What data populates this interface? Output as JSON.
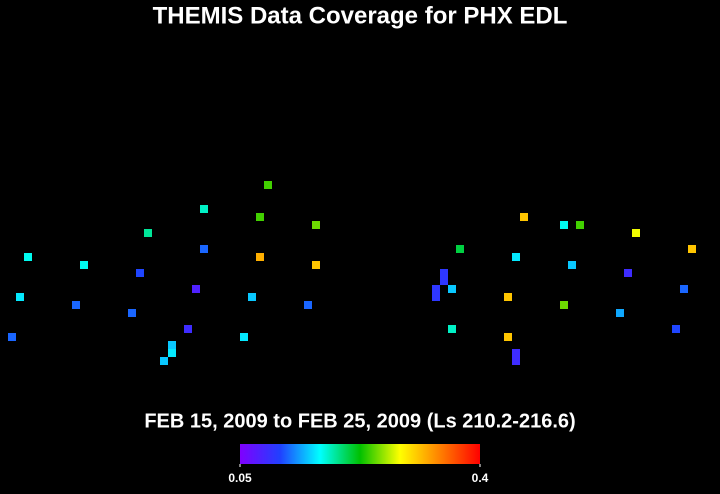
{
  "chart_data": {
    "type": "scatter",
    "title": "THEMIS Data Coverage for PHX EDL",
    "subtitle": "FEB 15, 2009 to FEB 25, 2009 (Ls 210.2-216.6)",
    "xlim": [
      0,
      720
    ],
    "ylim": [
      494,
      0
    ],
    "x": [
      12,
      20,
      28,
      76,
      84,
      132,
      140,
      148,
      164,
      172,
      172,
      188,
      196,
      204,
      204,
      244,
      252,
      260,
      260,
      268,
      308,
      316,
      316,
      436,
      436,
      444,
      444,
      452,
      452,
      460,
      508,
      508,
      516,
      516,
      516,
      524,
      564,
      564,
      572,
      580,
      620,
      628,
      636,
      676,
      684,
      692
    ],
    "y": [
      337,
      297,
      257,
      305,
      265,
      313,
      273,
      233,
      361,
      345,
      353,
      329,
      289,
      249,
      209,
      337,
      297,
      257,
      217,
      185,
      305,
      265,
      225,
      297,
      289,
      281,
      273,
      289,
      329,
      249,
      297,
      337,
      353,
      361,
      257,
      217,
      225,
      305,
      265,
      225,
      313,
      273,
      233,
      329,
      289,
      249
    ],
    "values": [
      0.12,
      0.16,
      0.17,
      0.12,
      0.17,
      0.12,
      0.11,
      0.19,
      0.15,
      0.15,
      0.16,
      0.09,
      0.08,
      0.12,
      0.18,
      0.16,
      0.15,
      0.32,
      0.24,
      0.24,
      0.12,
      0.31,
      0.25,
      0.1,
      0.1,
      0.1,
      0.1,
      0.15,
      0.18,
      0.21,
      0.31,
      0.31,
      0.09,
      0.09,
      0.16,
      0.31,
      0.17,
      0.25,
      0.15,
      0.24,
      0.14,
      0.09,
      0.28,
      0.11,
      0.12,
      0.31
    ],
    "clim": [
      0.05,
      0.4
    ],
    "colorbar_ticks": [
      0.05,
      0.4
    ],
    "colormap": [
      "#8000ff",
      "#2040ff",
      "#00ffff",
      "#00c000",
      "#ffff00",
      "#ff8000",
      "#ff0000"
    ]
  }
}
